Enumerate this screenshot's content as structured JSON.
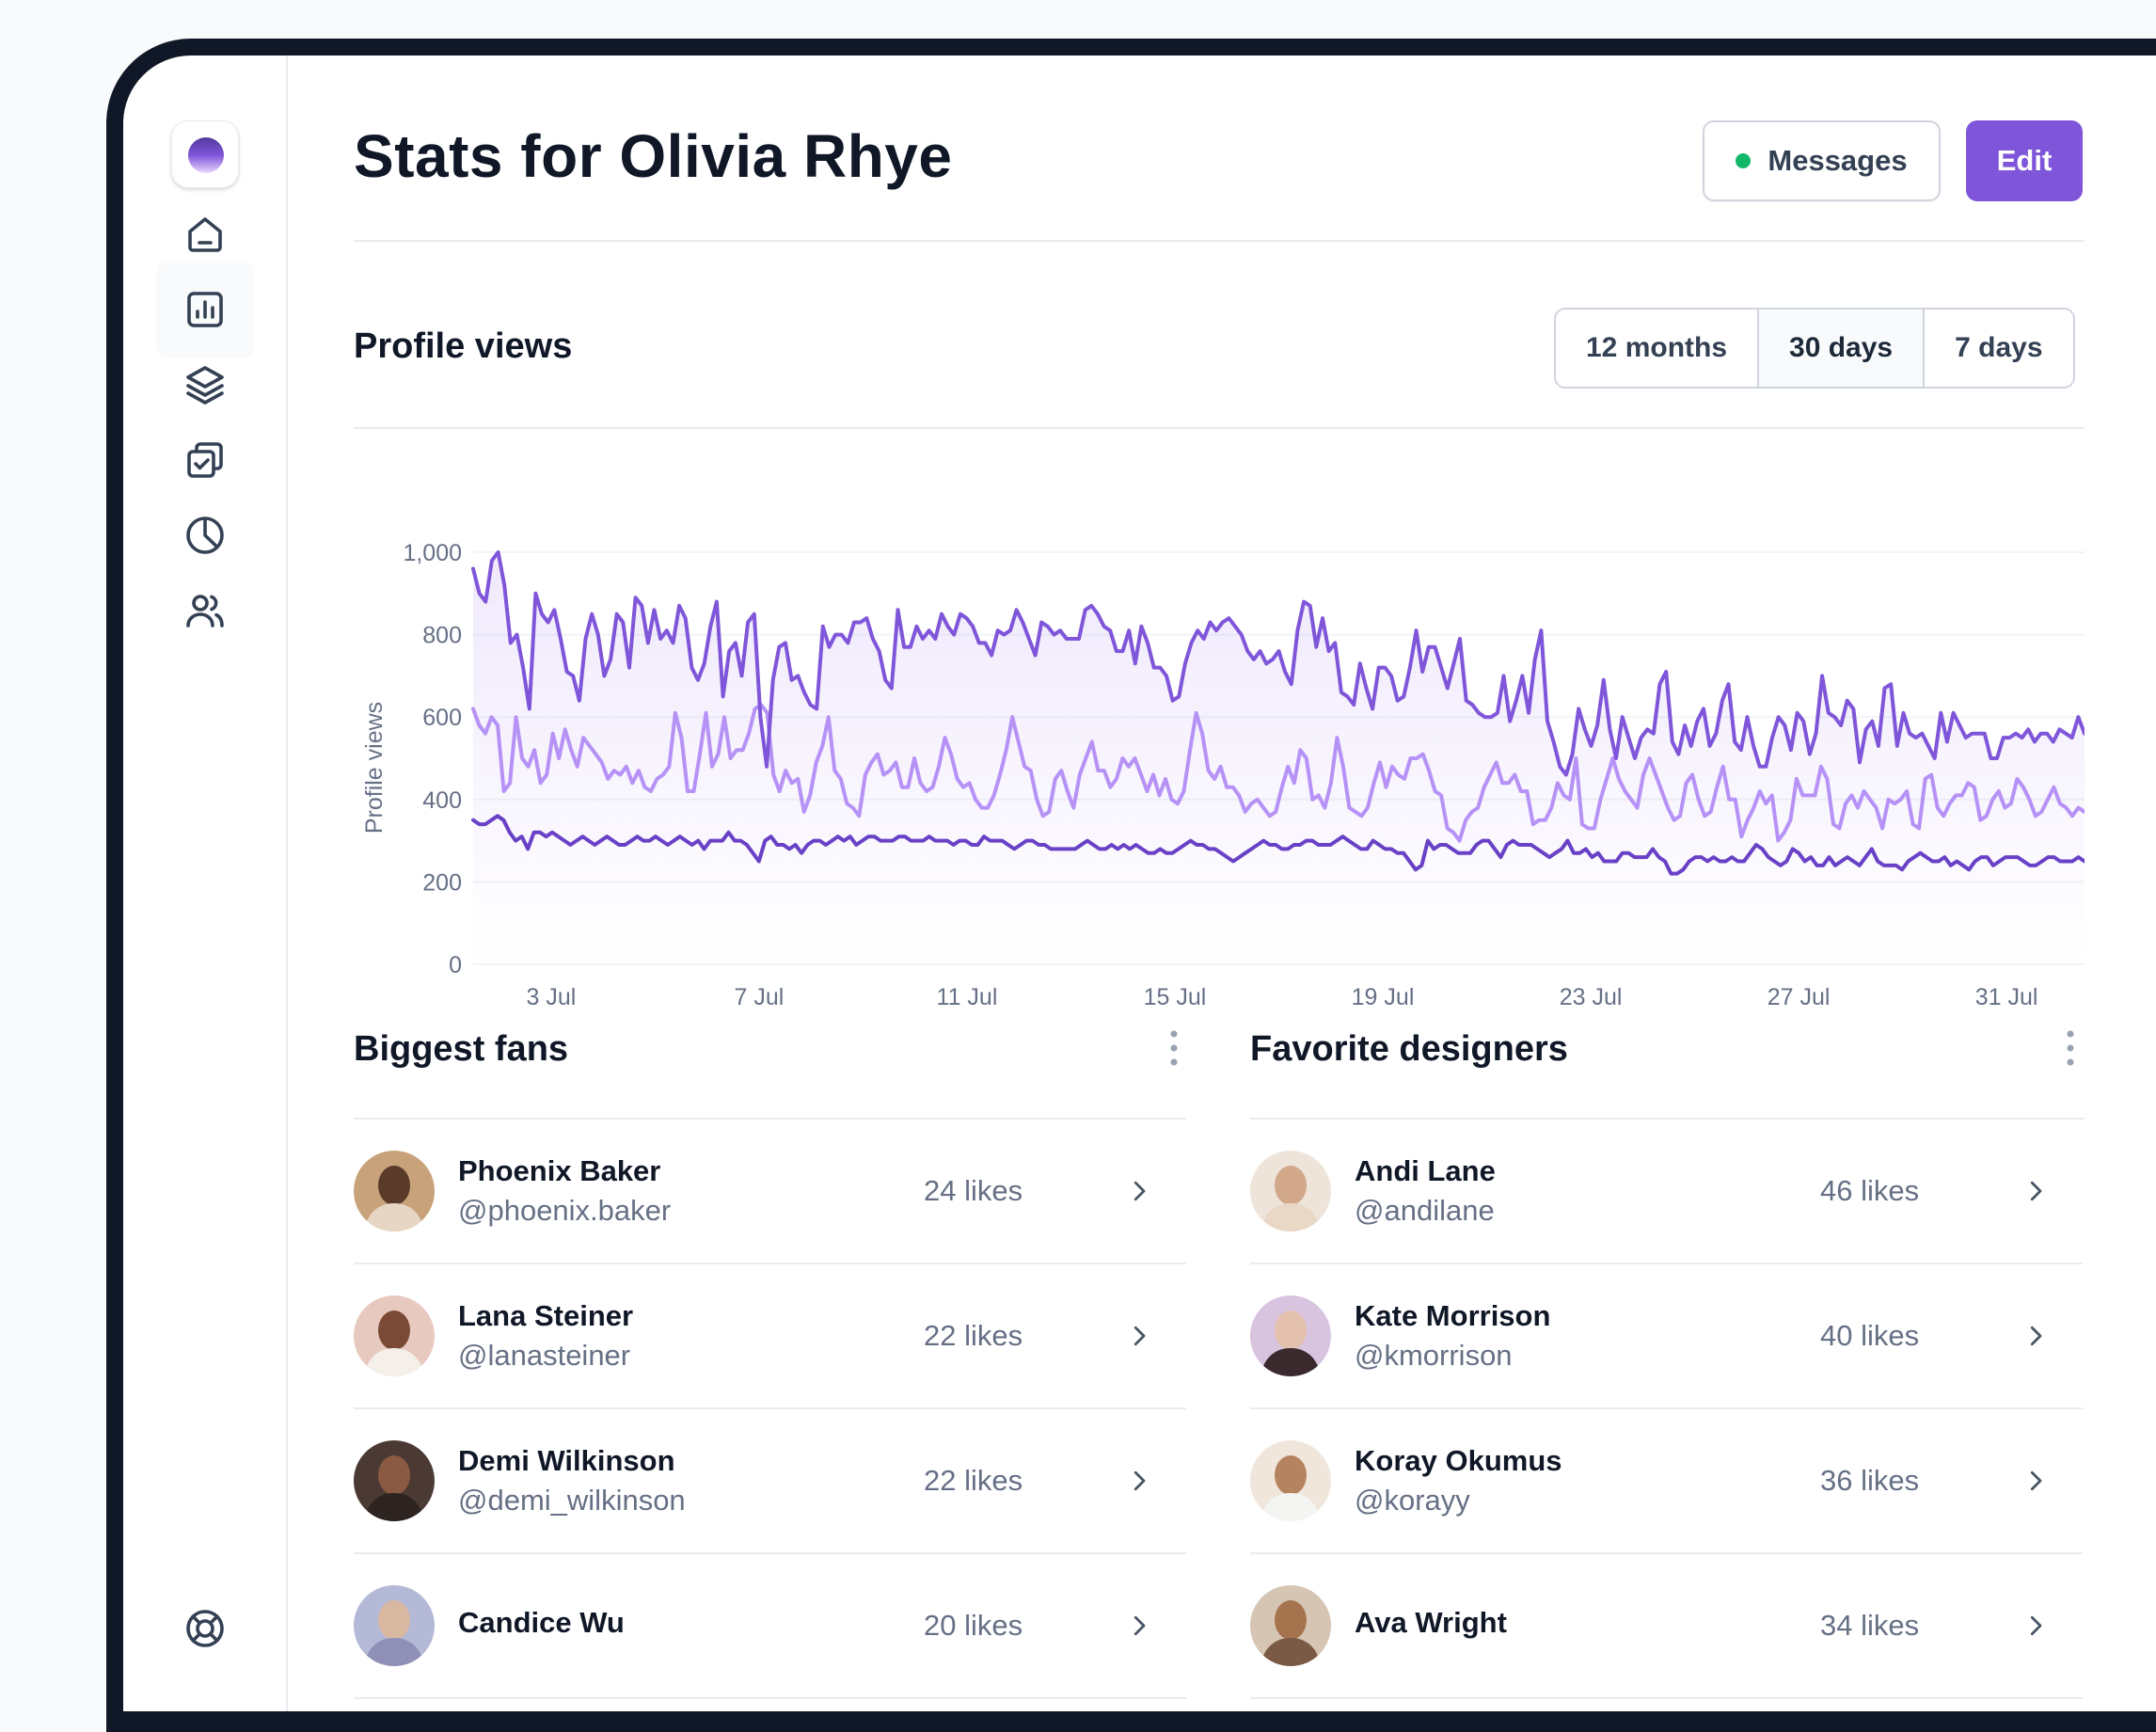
{
  "header": {
    "title": "Stats for Olivia Rhye",
    "messages_label": "Messages",
    "edit_label": "Edit"
  },
  "sidebar": {
    "items": [
      {
        "icon": "home-icon"
      },
      {
        "icon": "bar-chart-icon",
        "active": true
      },
      {
        "icon": "layers-icon"
      },
      {
        "icon": "check-square-icon"
      },
      {
        "icon": "pie-chart-icon"
      },
      {
        "icon": "users-icon"
      },
      {
        "icon": "life-buoy-icon"
      }
    ]
  },
  "profile_views": {
    "title": "Profile views",
    "tabs": [
      {
        "label": "12 months",
        "active": false
      },
      {
        "label": "30 days",
        "active": true
      },
      {
        "label": "7 days",
        "active": false
      }
    ]
  },
  "colors": {
    "accent": "#7f56d9",
    "series_dark": "#6941c6",
    "series_mid": "#7f56d9",
    "series_light": "#b692f6",
    "status_online": "#12b76a"
  },
  "chart_data": {
    "type": "line",
    "ylabel": "Profile views",
    "xlabel": "",
    "ylim": [
      0,
      1000
    ],
    "yticks": [
      "0",
      "200",
      "400",
      "600",
      "800",
      "1,000"
    ],
    "ytick_values": [
      0,
      200,
      400,
      600,
      800,
      1000
    ],
    "xticks": [
      "3 Jul",
      "7 Jul",
      "11 Jul",
      "15 Jul",
      "19 Jul",
      "23 Jul",
      "27 Jul",
      "31 Jul"
    ],
    "xtick_days": [
      3,
      7,
      11,
      15,
      19,
      23,
      27,
      31
    ],
    "x_start_day": 1.5,
    "x_end_day": 32.5,
    "grid": true,
    "series": [
      {
        "color": "#7f56d9",
        "values": [
          960,
          900,
          880,
          980,
          1000,
          920,
          780,
          800,
          720,
          620,
          900,
          850,
          830,
          860,
          790,
          710,
          700,
          640,
          790,
          850,
          800,
          700,
          740,
          850,
          830,
          720,
          890,
          870,
          780,
          860,
          790,
          810,
          780,
          870,
          840,
          720,
          690,
          730,
          820,
          880,
          650,
          760,
          780,
          700,
          830,
          850,
          600,
          480,
          690,
          770,
          780,
          690,
          700,
          660,
          630,
          620,
          820,
          770,
          800,
          800,
          780,
          830,
          830,
          840,
          790,
          760,
          690,
          670,
          860,
          770,
          770,
          820,
          790,
          810,
          790,
          850,
          820,
          800,
          850,
          840,
          820,
          780,
          780,
          750,
          810,
          800,
          810,
          860,
          830,
          790,
          750,
          830,
          820,
          800,
          810,
          790,
          790,
          790,
          860,
          870,
          850,
          820,
          810,
          760,
          760,
          810,
          730,
          820,
          780,
          720,
          720,
          700,
          640,
          650,
          730,
          780,
          810,
          790,
          830,
          810,
          830,
          840,
          820,
          800,
          760,
          740,
          760,
          730,
          740,
          760,
          710,
          680,
          810,
          880,
          870,
          770,
          840,
          760,
          780,
          660,
          650,
          630,
          730,
          670,
          620,
          720,
          720,
          700,
          640,
          650,
          720,
          810,
          710,
          770,
          770,
          720,
          670,
          730,
          790,
          640,
          630,
          610,
          600,
          600,
          610,
          700,
          590,
          640,
          700,
          610,
          740,
          810,
          590,
          540,
          480,
          460,
          510,
          620,
          570,
          530,
          580,
          690,
          570,
          500,
          600,
          550,
          500,
          550,
          570,
          560,
          680,
          710,
          540,
          510,
          580,
          530,
          590,
          620,
          530,
          560,
          640,
          680,
          540,
          520,
          600,
          530,
          480,
          480,
          550,
          600,
          580,
          520,
          610,
          590,
          510,
          560,
          700,
          610,
          600,
          580,
          640,
          620,
          490,
          570,
          590,
          530,
          670,
          680,
          530,
          610,
          560,
          550,
          560,
          530,
          500,
          610,
          540,
          610,
          580,
          550,
          560,
          560,
          560,
          500,
          500,
          550,
          550,
          560,
          550,
          570,
          540,
          560,
          560,
          540,
          570,
          560,
          550,
          600,
          560
        ]
      },
      {
        "color": "#b692f6",
        "values": [
          620,
          580,
          560,
          600,
          580,
          420,
          440,
          600,
          500,
          480,
          520,
          440,
          460,
          560,
          500,
          570,
          520,
          480,
          550,
          530,
          510,
          490,
          450,
          470,
          460,
          480,
          440,
          470,
          430,
          420,
          450,
          460,
          480,
          610,
          550,
          420,
          420,
          510,
          610,
          480,
          510,
          600,
          500,
          520,
          520,
          560,
          620,
          630,
          610,
          460,
          420,
          470,
          440,
          450,
          370,
          410,
          490,
          530,
          600,
          470,
          450,
          390,
          380,
          360,
          460,
          490,
          510,
          460,
          470,
          490,
          430,
          430,
          500,
          440,
          420,
          430,
          480,
          550,
          510,
          450,
          430,
          440,
          400,
          380,
          380,
          410,
          460,
          520,
          600,
          540,
          480,
          470,
          400,
          360,
          370,
          450,
          470,
          420,
          380,
          460,
          500,
          540,
          470,
          470,
          430,
          450,
          500,
          480,
          500,
          460,
          420,
          460,
          410,
          450,
          400,
          390,
          420,
          520,
          610,
          560,
          470,
          450,
          480,
          430,
          430,
          410,
          370,
          390,
          400,
          380,
          360,
          370,
          430,
          480,
          440,
          520,
          500,
          400,
          410,
          380,
          440,
          550,
          480,
          380,
          370,
          360,
          380,
          440,
          490,
          430,
          480,
          460,
          450,
          500,
          500,
          510,
          470,
          420,
          410,
          330,
          320,
          300,
          350,
          370,
          380,
          430,
          460,
          490,
          440,
          440,
          460,
          420,
          420,
          340,
          350,
          350,
          380,
          440,
          410,
          400,
          500,
          340,
          330,
          330,
          400,
          450,
          500,
          450,
          420,
          400,
          380,
          460,
          500,
          460,
          420,
          380,
          350,
          360,
          440,
          460,
          400,
          360,
          370,
          430,
          480,
          400,
          400,
          310,
          350,
          380,
          420,
          390,
          410,
          300,
          320,
          350,
          450,
          410,
          410,
          410,
          480,
          450,
          340,
          330,
          390,
          410,
          380,
          420,
          400,
          380,
          330,
          400,
          390,
          400,
          420,
          340,
          330,
          450,
          460,
          380,
          360,
          390,
          410,
          410,
          440,
          430,
          350,
          360,
          400,
          420,
          380,
          390,
          450,
          430,
          400,
          360,
          370,
          400,
          430,
          390,
          380,
          360,
          380,
          370
        ]
      },
      {
        "color": "#6941c6",
        "values": [
          350,
          340,
          340,
          350,
          360,
          350,
          320,
          300,
          310,
          280,
          320,
          320,
          310,
          320,
          310,
          300,
          290,
          300,
          310,
          300,
          290,
          300,
          310,
          300,
          290,
          290,
          300,
          310,
          300,
          300,
          310,
          300,
          290,
          300,
          310,
          300,
          290,
          300,
          280,
          300,
          300,
          300,
          320,
          300,
          300,
          290,
          270,
          250,
          300,
          310,
          290,
          290,
          280,
          290,
          270,
          290,
          300,
          300,
          290,
          300,
          310,
          300,
          310,
          290,
          300,
          310,
          310,
          300,
          300,
          300,
          310,
          310,
          300,
          300,
          300,
          310,
          300,
          300,
          300,
          290,
          300,
          300,
          290,
          290,
          310,
          300,
          300,
          300,
          290,
          280,
          290,
          300,
          300,
          290,
          290,
          280,
          280,
          280,
          280,
          280,
          290,
          300,
          290,
          280,
          280,
          290,
          280,
          290,
          280,
          290,
          280,
          270,
          270,
          280,
          270,
          270,
          280,
          290,
          300,
          290,
          290,
          280,
          280,
          270,
          260,
          250,
          260,
          270,
          280,
          290,
          300,
          290,
          290,
          280,
          280,
          290,
          290,
          300,
          300,
          290,
          290,
          290,
          300,
          310,
          300,
          290,
          280,
          280,
          300,
          290,
          280,
          280,
          270,
          270,
          250,
          230,
          240,
          300,
          280,
          290,
          290,
          280,
          270,
          270,
          270,
          290,
          300,
          300,
          280,
          260,
          290,
          300,
          290,
          290,
          290,
          280,
          270,
          260,
          270,
          280,
          300,
          270,
          270,
          280,
          260,
          270,
          250,
          250,
          250,
          270,
          270,
          260,
          260,
          260,
          280,
          260,
          250,
          220,
          220,
          230,
          250,
          260,
          260,
          250,
          260,
          250,
          250,
          260,
          250,
          250,
          270,
          290,
          280,
          260,
          250,
          240,
          250,
          280,
          270,
          250,
          260,
          240,
          240,
          260,
          240,
          250,
          260,
          250,
          240,
          260,
          280,
          250,
          240,
          240,
          240,
          230,
          250,
          260,
          270,
          260,
          250,
          250,
          260,
          240,
          250,
          240,
          230,
          250,
          260,
          260,
          240,
          250,
          260,
          260,
          260,
          250,
          240,
          240,
          250,
          260,
          260,
          250,
          250,
          250,
          260,
          250
        ]
      }
    ]
  },
  "fans": {
    "title": "Biggest fans",
    "items": [
      {
        "name": "Phoenix Baker",
        "handle": "@phoenix.baker",
        "likes": "24 likes",
        "bg": "#c8a27a",
        "skin": "#5a3b2a",
        "shirt": "#e7d6c3"
      },
      {
        "name": "Lana Steiner",
        "handle": "@lanasteiner",
        "likes": "22 likes",
        "bg": "#e8c9c0",
        "skin": "#7a4a36",
        "shirt": "#f5efe9"
      },
      {
        "name": "Demi Wilkinson",
        "handle": "@demi_wilkinson",
        "likes": "22 likes",
        "bg": "#4b3a33",
        "skin": "#8a5a43",
        "shirt": "#2d2320"
      },
      {
        "name": "Candice Wu",
        "handle": "",
        "likes": "20 likes",
        "bg": "#b3b9d6",
        "skin": "#d9b8a2",
        "shirt": "#8f8fb8"
      }
    ]
  },
  "designers": {
    "title": "Favorite designers",
    "items": [
      {
        "name": "Andi Lane",
        "handle": "@andilane",
        "likes": "46 likes",
        "bg": "#efe4d9",
        "skin": "#d2a88a",
        "shirt": "#e9d8c6"
      },
      {
        "name": "Kate Morrison",
        "handle": "@kmorrison",
        "likes": "40 likes",
        "bg": "#d9c4e0",
        "skin": "#e4c1ad",
        "shirt": "#3a2a2e"
      },
      {
        "name": "Koray Okumus",
        "handle": "@korayy",
        "likes": "36 likes",
        "bg": "#f1e6dc",
        "skin": "#b5835f",
        "shirt": "#f4f4f2"
      },
      {
        "name": "Ava Wright",
        "handle": "",
        "likes": "34 likes",
        "bg": "#d6c5b3",
        "skin": "#a5744e",
        "shirt": "#7a5a44"
      }
    ]
  }
}
